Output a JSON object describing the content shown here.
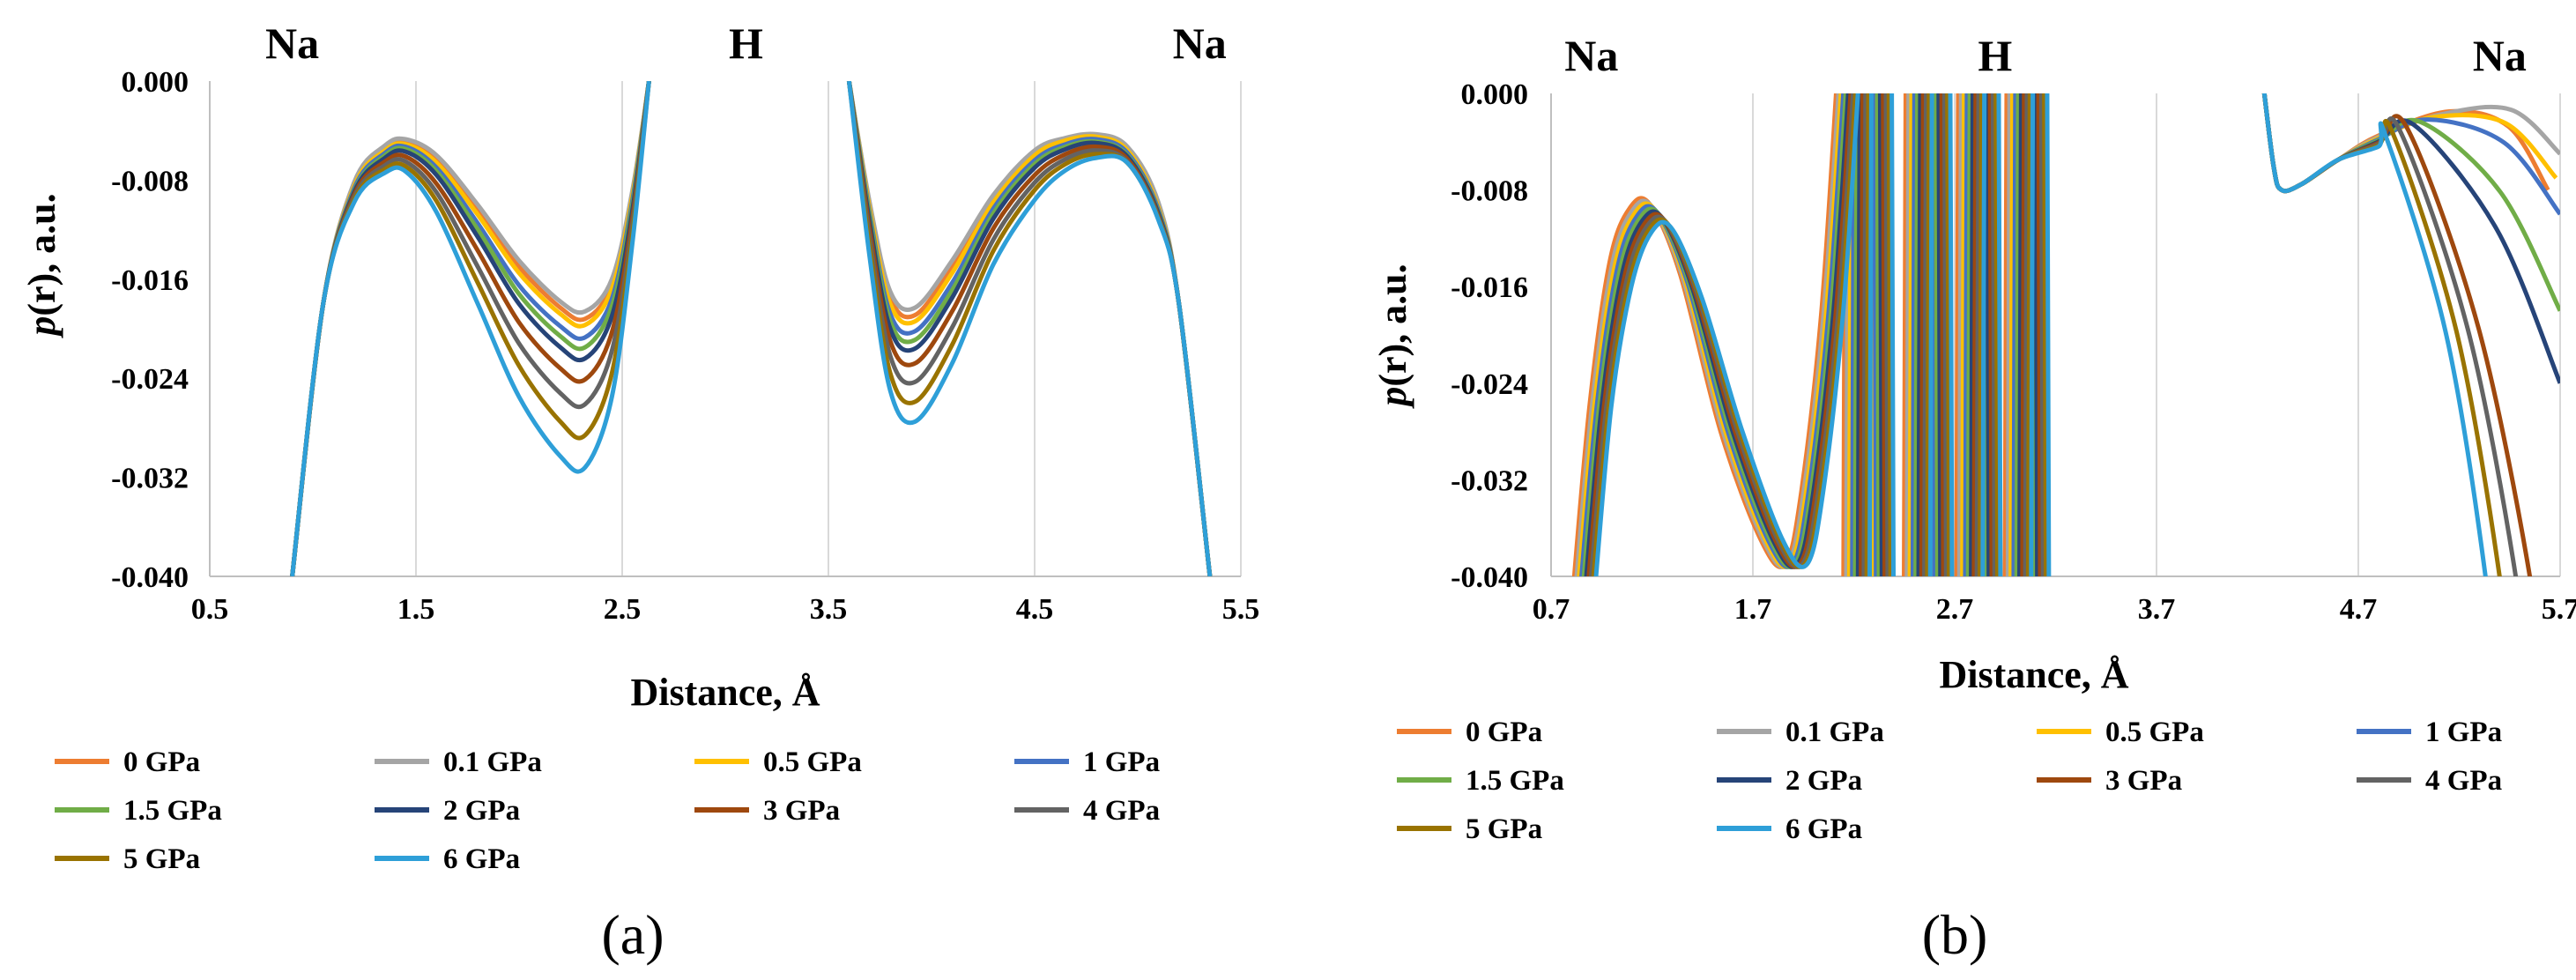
{
  "chart_data": [
    {
      "type": "line",
      "panel_label": "(a)",
      "xlabel": "Distance, Å",
      "ylabel_prefix": "p",
      "ylabel_suffix": "(r), a.u.",
      "xlim": [
        0.5,
        5.5
      ],
      "ylim": [
        -0.04,
        0.0
      ],
      "x_ticks": [
        "0.5",
        "1.5",
        "2.5",
        "3.5",
        "4.5",
        "5.5"
      ],
      "x_tick_values": [
        0.5,
        1.5,
        2.5,
        3.5,
        4.5,
        5.5
      ],
      "y_ticks": [
        "0.000",
        "-0.008",
        "-0.016",
        "-0.024",
        "-0.032",
        "-0.040"
      ],
      "y_tick_values": [
        0.0,
        -0.008,
        -0.016,
        -0.024,
        -0.032,
        -0.04
      ],
      "grid": "vertical",
      "atoms": [
        {
          "label": "Na",
          "x": 0.9
        },
        {
          "label": "H",
          "x": 3.1
        },
        {
          "label": "Na",
          "x": 5.3
        }
      ],
      "series": [
        {
          "name": "0 GPa",
          "color": "#ED7D31",
          "x": [
            0.9,
            1.05,
            1.2,
            1.35,
            1.45,
            1.6,
            1.8,
            2.0,
            2.2,
            2.32,
            2.45,
            2.55,
            2.63,
            3.6,
            3.7,
            3.8,
            3.92,
            4.1,
            4.3,
            4.5,
            4.65,
            4.8,
            4.95,
            5.1,
            5.2,
            5.35
          ],
          "y": [
            -0.04,
            -0.018,
            -0.0085,
            -0.0055,
            -0.005,
            -0.0064,
            -0.0105,
            -0.015,
            -0.0183,
            -0.0192,
            -0.0165,
            -0.009,
            0.0,
            0.0,
            -0.01,
            -0.0175,
            -0.0189,
            -0.015,
            -0.0095,
            -0.0058,
            -0.0048,
            -0.0045,
            -0.0055,
            -0.01,
            -0.018,
            -0.04
          ]
        },
        {
          "name": "0.1 GPa",
          "color": "#A5A5A5",
          "x": [
            0.9,
            1.05,
            1.2,
            1.35,
            1.45,
            1.6,
            1.8,
            2.0,
            2.2,
            2.32,
            2.45,
            2.55,
            2.63,
            3.6,
            3.7,
            3.8,
            3.92,
            4.1,
            4.3,
            4.5,
            4.65,
            4.8,
            4.95,
            5.1,
            5.2,
            5.35
          ],
          "y": [
            -0.04,
            -0.018,
            -0.0082,
            -0.0052,
            -0.0047,
            -0.006,
            -0.01,
            -0.0145,
            -0.0178,
            -0.0186,
            -0.016,
            -0.0088,
            0.0,
            0.0,
            -0.0098,
            -0.017,
            -0.0183,
            -0.0145,
            -0.0092,
            -0.0056,
            -0.0046,
            -0.0043,
            -0.0053,
            -0.0098,
            -0.018,
            -0.04
          ]
        },
        {
          "name": "0.5 GPa",
          "color": "#FFC000",
          "x": [
            0.9,
            1.05,
            1.2,
            1.35,
            1.45,
            1.6,
            1.8,
            2.0,
            2.2,
            2.32,
            2.45,
            2.55,
            2.63,
            3.6,
            3.7,
            3.8,
            3.92,
            4.1,
            4.3,
            4.5,
            4.65,
            4.8,
            4.95,
            5.1,
            5.2,
            5.35
          ],
          "y": [
            -0.04,
            -0.018,
            -0.0085,
            -0.0056,
            -0.0051,
            -0.0066,
            -0.0108,
            -0.0155,
            -0.0188,
            -0.0197,
            -0.0168,
            -0.0092,
            0.0,
            0.0,
            -0.0103,
            -0.018,
            -0.0194,
            -0.0155,
            -0.0098,
            -0.006,
            -0.0048,
            -0.0045,
            -0.0056,
            -0.0102,
            -0.018,
            -0.04
          ]
        },
        {
          "name": "1 GPa",
          "color": "#4472C4",
          "x": [
            0.9,
            1.05,
            1.2,
            1.35,
            1.45,
            1.6,
            1.8,
            2.0,
            2.2,
            2.32,
            2.45,
            2.55,
            2.63,
            3.6,
            3.7,
            3.8,
            3.92,
            4.1,
            4.3,
            4.5,
            4.65,
            4.8,
            4.95,
            5.1,
            5.2,
            5.35
          ],
          "y": [
            -0.04,
            -0.018,
            -0.0087,
            -0.0058,
            -0.0053,
            -0.007,
            -0.0115,
            -0.0165,
            -0.0198,
            -0.0207,
            -0.0176,
            -0.0096,
            0.0,
            0.0,
            -0.0107,
            -0.0188,
            -0.0202,
            -0.0163,
            -0.0103,
            -0.0064,
            -0.0051,
            -0.0047,
            -0.0058,
            -0.0104,
            -0.018,
            -0.04
          ]
        },
        {
          "name": "1.5 GPa",
          "color": "#70AD47",
          "x": [
            0.9,
            1.05,
            1.2,
            1.35,
            1.45,
            1.6,
            1.8,
            2.0,
            2.2,
            2.32,
            2.45,
            2.55,
            2.63,
            3.6,
            3.7,
            3.8,
            3.92,
            4.1,
            4.3,
            4.5,
            4.65,
            4.8,
            4.95,
            5.1,
            5.2,
            5.35
          ],
          "y": [
            -0.04,
            -0.018,
            -0.0089,
            -0.006,
            -0.0055,
            -0.0073,
            -0.012,
            -0.0172,
            -0.0206,
            -0.0215,
            -0.0182,
            -0.01,
            0.0,
            0.0,
            -0.011,
            -0.0194,
            -0.0209,
            -0.0169,
            -0.0107,
            -0.0067,
            -0.0053,
            -0.0049,
            -0.006,
            -0.0106,
            -0.018,
            -0.04
          ]
        },
        {
          "name": "2 GPa",
          "color": "#264478",
          "x": [
            0.9,
            1.05,
            1.2,
            1.35,
            1.45,
            1.6,
            1.8,
            2.0,
            2.2,
            2.32,
            2.45,
            2.55,
            2.63,
            3.6,
            3.7,
            3.8,
            3.92,
            4.1,
            4.3,
            4.5,
            4.65,
            4.8,
            4.95,
            5.1,
            5.2,
            5.35
          ],
          "y": [
            -0.04,
            -0.018,
            -0.009,
            -0.0062,
            -0.0057,
            -0.0076,
            -0.0126,
            -0.018,
            -0.0215,
            -0.0224,
            -0.019,
            -0.0104,
            0.0,
            0.0,
            -0.0114,
            -0.02,
            -0.0216,
            -0.0175,
            -0.0111,
            -0.007,
            -0.0055,
            -0.005,
            -0.0061,
            -0.0107,
            -0.018,
            -0.04
          ]
        },
        {
          "name": "3 GPa",
          "color": "#9E480E",
          "x": [
            0.9,
            1.05,
            1.2,
            1.35,
            1.45,
            1.6,
            1.8,
            2.0,
            2.2,
            2.32,
            2.45,
            2.55,
            2.63,
            3.6,
            3.7,
            3.8,
            3.92,
            4.1,
            4.3,
            4.5,
            4.65,
            4.8,
            4.95,
            5.1,
            5.2,
            5.35
          ],
          "y": [
            -0.04,
            -0.018,
            -0.0092,
            -0.0065,
            -0.0061,
            -0.0083,
            -0.0137,
            -0.0195,
            -0.0232,
            -0.0241,
            -0.0203,
            -0.011,
            0.0,
            0.0,
            -0.012,
            -0.021,
            -0.0228,
            -0.0186,
            -0.0119,
            -0.0076,
            -0.0059,
            -0.0053,
            -0.0063,
            -0.0109,
            -0.018,
            -0.04
          ]
        },
        {
          "name": "4 GPa",
          "color": "#636363",
          "x": [
            0.9,
            1.05,
            1.2,
            1.35,
            1.45,
            1.6,
            1.8,
            2.0,
            2.2,
            2.32,
            2.45,
            2.55,
            2.63,
            3.6,
            3.7,
            3.8,
            3.92,
            4.1,
            4.3,
            4.5,
            4.65,
            4.8,
            4.95,
            5.1,
            5.2,
            5.35
          ],
          "y": [
            -0.04,
            -0.018,
            -0.0094,
            -0.0068,
            -0.0065,
            -0.009,
            -0.015,
            -0.0212,
            -0.0252,
            -0.0261,
            -0.0218,
            -0.0116,
            0.0,
            0.0,
            -0.0127,
            -0.0222,
            -0.0243,
            -0.0199,
            -0.0128,
            -0.0082,
            -0.0063,
            -0.0056,
            -0.0065,
            -0.011,
            -0.018,
            -0.04
          ]
        },
        {
          "name": "5 GPa",
          "color": "#997300",
          "x": [
            0.9,
            1.05,
            1.2,
            1.35,
            1.45,
            1.6,
            1.8,
            2.0,
            2.2,
            2.32,
            2.45,
            2.55,
            2.63,
            3.6,
            3.7,
            3.8,
            3.92,
            4.1,
            4.3,
            4.5,
            4.65,
            4.8,
            4.95,
            5.1,
            5.2,
            5.35
          ],
          "y": [
            -0.04,
            -0.018,
            -0.0096,
            -0.0071,
            -0.0069,
            -0.0097,
            -0.0163,
            -0.023,
            -0.0275,
            -0.0286,
            -0.0236,
            -0.0123,
            0.0,
            0.0,
            -0.0134,
            -0.0236,
            -0.0259,
            -0.0213,
            -0.0137,
            -0.0088,
            -0.0067,
            -0.0059,
            -0.0066,
            -0.0111,
            -0.018,
            -0.04
          ]
        },
        {
          "name": "6 GPa",
          "color": "#2E9FD8",
          "x": [
            0.9,
            1.05,
            1.2,
            1.35,
            1.45,
            1.6,
            1.8,
            2.0,
            2.2,
            2.32,
            2.45,
            2.55,
            2.63,
            3.6,
            3.7,
            3.8,
            3.92,
            4.1,
            4.3,
            4.5,
            4.65,
            4.8,
            4.95,
            5.1,
            5.2,
            5.35
          ],
          "y": [
            -0.04,
            -0.018,
            -0.0098,
            -0.0074,
            -0.0073,
            -0.0106,
            -0.018,
            -0.0255,
            -0.0303,
            -0.0312,
            -0.0255,
            -0.013,
            0.0,
            0.0,
            -0.0142,
            -0.025,
            -0.0275,
            -0.0228,
            -0.0148,
            -0.0096,
            -0.0072,
            -0.0062,
            -0.0066,
            -0.0112,
            -0.018,
            -0.04
          ]
        }
      ]
    },
    {
      "type": "line",
      "panel_label": "(b)",
      "xlabel": "Distance, Å",
      "ylabel_prefix": "p",
      "ylabel_suffix": "(r), a.u.",
      "xlim": [
        0.7,
        5.7
      ],
      "ylim": [
        -0.04,
        0.0
      ],
      "x_ticks": [
        "0.7",
        "1.7",
        "2.7",
        "3.7",
        "4.7",
        "5.7"
      ],
      "x_tick_values": [
        0.7,
        1.7,
        2.7,
        3.7,
        4.7,
        5.7
      ],
      "y_ticks": [
        "0.000",
        "-0.008",
        "-0.016",
        "-0.024",
        "-0.032",
        "-0.040"
      ],
      "y_tick_values": [
        0.0,
        -0.008,
        -0.016,
        -0.024,
        -0.032,
        -0.04
      ],
      "grid": "vertical",
      "atoms": [
        {
          "label": "Na",
          "x": 0.9
        },
        {
          "label": "H",
          "x": 2.9
        },
        {
          "label": "Na",
          "x": 5.4
        }
      ],
      "series": [
        {
          "name": "0 GPa",
          "color": "#ED7D31",
          "end_x": 5.64,
          "end_y": -0.008
        },
        {
          "name": "0.1 GPa",
          "color": "#A5A5A5",
          "end_x": 5.7,
          "end_y": -0.005
        },
        {
          "name": "0.5 GPa",
          "color": "#FFC000",
          "end_x": 5.68,
          "end_y": -0.007
        },
        {
          "name": "1 GPa",
          "color": "#4472C4",
          "end_x": 5.7,
          "end_y": -0.01
        },
        {
          "name": "1.5 GPa",
          "color": "#70AD47",
          "end_x": 5.7,
          "end_y": -0.018
        },
        {
          "name": "2 GPa",
          "color": "#264478",
          "end_x": 5.7,
          "end_y": -0.024
        },
        {
          "name": "3 GPa",
          "color": "#9E480E",
          "end_x": 5.55,
          "end_y": -0.04
        },
        {
          "name": "4 GPa",
          "color": "#636363",
          "end_x": 5.48,
          "end_y": -0.04
        },
        {
          "name": "5 GPa",
          "color": "#997300",
          "end_x": 5.4,
          "end_y": -0.04
        },
        {
          "name": "6 GPa",
          "color": "#2E9FD8",
          "end_x": 5.33,
          "end_y": -0.04
        }
      ]
    }
  ]
}
